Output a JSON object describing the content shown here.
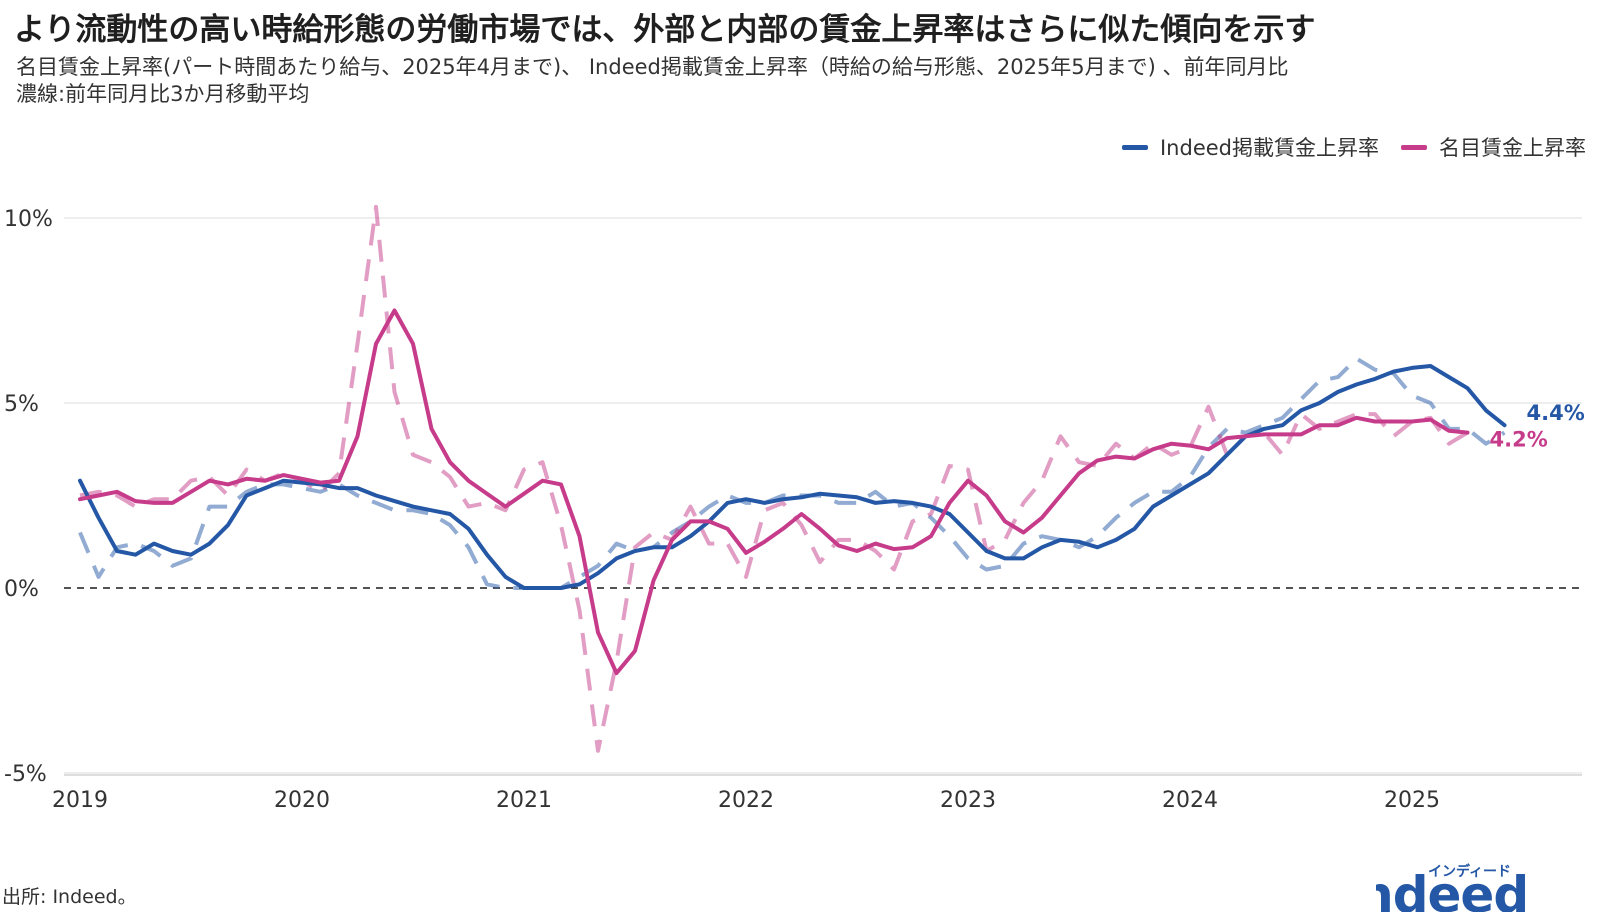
{
  "title": "より流動性の高い時給形態の労働市場では、外部と内部の賃金上昇率はさらに似た傾向を示す",
  "subtitle_line1": "名目賃金上昇率(パート時間あたり給与、2025年4月まで)、 Indeed掲載賃金上昇率（時給の給与形態、2025年5月まで) 、前年同月比",
  "subtitle_line2": "濃線:前年同月比3か月移動平均",
  "source": "出所: Indeed。",
  "logo": {
    "text": "indeed",
    "kana": "インディード"
  },
  "chart_data": {
    "type": "line",
    "x_start": "2019-01",
    "x_ticks": [
      "2019",
      "2020",
      "2021",
      "2022",
      "2023",
      "2024",
      "2025"
    ],
    "ylim": [
      -5,
      10
    ],
    "y_ticks": [
      -5,
      0,
      5,
      10
    ],
    "y_tick_labels": [
      "-5%",
      "0%",
      "5%",
      "10%"
    ],
    "y_unit": "%",
    "zero_line": "dashed",
    "grid": true,
    "legend_position": "top-right",
    "series": [
      {
        "name": "Indeed掲載賃金上昇率",
        "color": "#2457a5",
        "end_label": "4.4%",
        "smooth": [
          2.9,
          1.9,
          1.0,
          0.9,
          1.2,
          1.0,
          0.9,
          1.2,
          1.7,
          2.5,
          2.7,
          2.9,
          2.85,
          2.8,
          2.7,
          2.7,
          2.5,
          2.35,
          2.2,
          2.1,
          2.0,
          1.6,
          0.9,
          0.3,
          0.0,
          0.0,
          0.0,
          0.1,
          0.4,
          0.8,
          1.0,
          1.1,
          1.1,
          1.4,
          1.8,
          2.3,
          2.4,
          2.3,
          2.4,
          2.45,
          2.55,
          2.5,
          2.45,
          2.3,
          2.35,
          2.3,
          2.2,
          2.0,
          1.5,
          1.0,
          0.8,
          0.8,
          1.1,
          1.3,
          1.25,
          1.1,
          1.3,
          1.6,
          2.2,
          2.5,
          2.8,
          3.1,
          3.6,
          4.1,
          4.3,
          4.4,
          4.8,
          5.0,
          5.3,
          5.5,
          5.65,
          5.85,
          5.95,
          6.0,
          5.7,
          5.4,
          4.8,
          4.4
        ],
        "raw": [
          1.5,
          0.3,
          1.1,
          1.2,
          1.0,
          0.6,
          0.8,
          2.2,
          2.2,
          2.6,
          2.8,
          2.8,
          2.7,
          2.6,
          2.8,
          2.5,
          2.3,
          2.1,
          2.1,
          2.0,
          1.7,
          1.1,
          0.1,
          0.0,
          0.0,
          0.0,
          0.0,
          0.3,
          0.6,
          1.2,
          1.0,
          1.1,
          1.5,
          1.8,
          2.2,
          2.5,
          2.3,
          2.3,
          2.5,
          2.5,
          2.5,
          2.3,
          2.3,
          2.6,
          2.2,
          2.3,
          1.9,
          1.4,
          0.8,
          0.5,
          0.6,
          1.2,
          1.4,
          1.3,
          1.1,
          1.4,
          1.9,
          2.3,
          2.6,
          2.6,
          3.0,
          3.8,
          4.3,
          4.2,
          4.4,
          4.6,
          5.1,
          5.6,
          5.7,
          6.2,
          5.9,
          5.8,
          5.2,
          5.0,
          4.3,
          4.3,
          3.9,
          4.2
        ]
      },
      {
        "name": "名目賃金上昇率",
        "color": "#c63b8a",
        "end_label": "4.2%",
        "smooth": [
          2.4,
          2.5,
          2.6,
          2.35,
          2.3,
          2.3,
          2.6,
          2.9,
          2.8,
          2.95,
          2.9,
          3.05,
          2.95,
          2.85,
          2.9,
          4.1,
          6.6,
          7.5,
          6.6,
          4.3,
          3.4,
          2.9,
          2.55,
          2.2,
          2.55,
          2.9,
          2.8,
          1.4,
          -1.2,
          -2.3,
          -1.7,
          0.2,
          1.3,
          1.8,
          1.8,
          1.6,
          0.95,
          1.25,
          1.6,
          2.0,
          1.6,
          1.15,
          1.0,
          1.2,
          1.05,
          1.1,
          1.4,
          2.3,
          2.9,
          2.5,
          1.8,
          1.5,
          1.9,
          2.5,
          3.1,
          3.45,
          3.55,
          3.5,
          3.75,
          3.9,
          3.85,
          3.75,
          4.05,
          4.1,
          4.15,
          4.15,
          4.15,
          4.4,
          4.4,
          4.6,
          4.5,
          4.5,
          4.5,
          4.55,
          4.25,
          4.2
        ],
        "raw": [
          2.5,
          2.6,
          2.5,
          2.2,
          2.4,
          2.4,
          2.9,
          3.0,
          2.5,
          3.2,
          2.9,
          3.1,
          2.9,
          2.6,
          3.1,
          6.6,
          10.3,
          5.3,
          3.6,
          3.4,
          3.0,
          2.2,
          2.3,
          2.1,
          3.2,
          3.4,
          1.7,
          -0.6,
          -4.4,
          -2.0,
          1.1,
          1.5,
          1.3,
          2.2,
          1.2,
          1.2,
          0.3,
          2.1,
          2.3,
          1.7,
          0.7,
          1.3,
          1.3,
          1.0,
          0.5,
          1.8,
          2.0,
          3.3,
          3.2,
          1.0,
          1.3,
          2.3,
          2.9,
          4.1,
          3.4,
          3.3,
          3.9,
          3.5,
          3.9,
          3.6,
          3.8,
          4.9,
          3.6,
          4.1,
          4.2,
          3.6,
          4.7,
          4.3,
          4.5,
          4.7,
          4.7,
          4.1,
          4.5,
          4.6,
          3.9,
          4.2
        ]
      }
    ]
  }
}
